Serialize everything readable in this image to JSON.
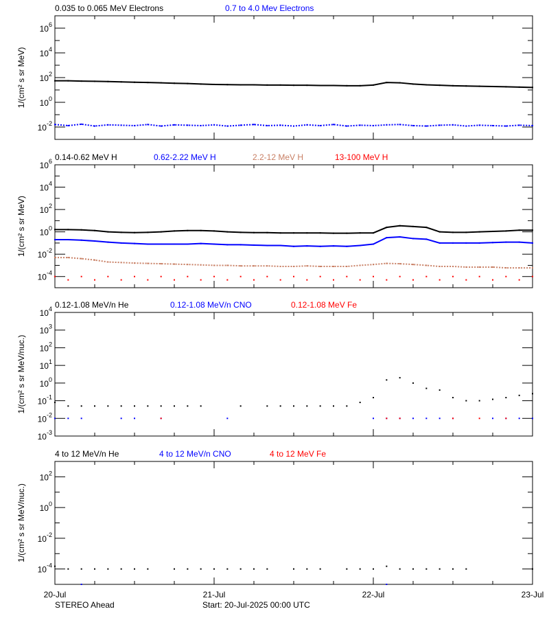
{
  "footer": {
    "spacecraft": "STEREO Ahead",
    "start": "Start: 20-Jul-2025 00:00 UTC"
  },
  "chart_data": {
    "type": "scatter",
    "x_axis": {
      "tick_labels": [
        "20-Jul",
        "21-Jul",
        "22-Jul",
        "23-Jul"
      ],
      "range": [
        "2025-07-20T00:00",
        "2025-07-23T00:00"
      ],
      "minor_tick_hours": 6
    },
    "x": [
      "2025-07-20T00:00",
      "2025-07-20T02:00",
      "2025-07-20T04:00",
      "2025-07-20T06:00",
      "2025-07-20T08:00",
      "2025-07-20T10:00",
      "2025-07-20T12:00",
      "2025-07-20T14:00",
      "2025-07-20T16:00",
      "2025-07-20T18:00",
      "2025-07-20T20:00",
      "2025-07-20T22:00",
      "2025-07-21T00:00",
      "2025-07-21T02:00",
      "2025-07-21T04:00",
      "2025-07-21T06:00",
      "2025-07-21T08:00",
      "2025-07-21T10:00",
      "2025-07-21T12:00",
      "2025-07-21T14:00",
      "2025-07-21T16:00",
      "2025-07-21T18:00",
      "2025-07-21T20:00",
      "2025-07-21T22:00",
      "2025-07-22T00:00",
      "2025-07-22T02:00",
      "2025-07-22T04:00",
      "2025-07-22T06:00",
      "2025-07-22T08:00",
      "2025-07-22T10:00",
      "2025-07-22T12:00",
      "2025-07-22T14:00",
      "2025-07-22T16:00",
      "2025-07-22T18:00",
      "2025-07-22T20:00",
      "2025-07-22T22:00",
      "2025-07-23T00:00"
    ],
    "panels": [
      {
        "ylabel": "1/(cm² s sr MeV)",
        "yscale": "log",
        "ylim": [
          0.001,
          10000000
        ],
        "ytick_exponents": [
          6,
          4,
          2,
          0,
          -2
        ],
        "series": [
          {
            "name": "0.035 to 0.065 MeV Electrons",
            "color": "#000000",
            "values": [
              55,
              55,
              52,
              50,
              48,
              45,
              42,
              40,
              38,
              35,
              33,
              30,
              28,
              27,
              26,
              26,
              25,
              25,
              24,
              24,
              23,
              23,
              22,
              22,
              25,
              40,
              38,
              30,
              26,
              24,
              22,
              21,
              20,
              19,
              18,
              17,
              16
            ]
          },
          {
            "name": "0.7 to 4.0 Mev Electrons",
            "color": "#0000ff",
            "values": [
              0.016,
              0.013,
              0.017,
              0.012,
              0.015,
              0.014,
              0.013,
              0.016,
              0.012,
              0.015,
              0.014,
              0.013,
              0.015,
              0.012,
              0.014,
              0.016,
              0.013,
              0.014,
              0.012,
              0.015,
              0.013,
              0.016,
              0.012,
              0.014,
              0.013,
              0.015,
              0.016,
              0.013,
              0.012,
              0.014,
              0.015,
              0.012,
              0.014,
              0.013,
              0.012,
              0.014,
              0.013
            ]
          }
        ]
      },
      {
        "ylabel": "1/(cm² s sr MeV)",
        "yscale": "log",
        "ylim": [
          1e-05,
          1000000
        ],
        "ytick_exponents": [
          6,
          4,
          2,
          0,
          -2,
          -4
        ],
        "series": [
          {
            "name": "0.14-0.62 MeV H",
            "color": "#000000",
            "values": [
              1.6,
              1.6,
              1.5,
              1.3,
              1.0,
              0.9,
              0.85,
              0.9,
              1.0,
              1.2,
              1.3,
              1.3,
              1.2,
              1.0,
              0.9,
              0.85,
              0.85,
              0.8,
              0.8,
              0.8,
              0.8,
              0.75,
              0.75,
              0.8,
              0.8,
              2.5,
              3.5,
              3.0,
              2.5,
              1.0,
              0.9,
              0.9,
              1.0,
              1.1,
              1.2,
              1.4,
              1.4
            ]
          },
          {
            "name": "0.62-2.22 MeV H",
            "color": "#0000ff",
            "values": [
              0.2,
              0.2,
              0.18,
              0.15,
              0.12,
              0.1,
              0.09,
              0.08,
              0.08,
              0.08,
              0.08,
              0.09,
              0.08,
              0.07,
              0.07,
              0.065,
              0.06,
              0.06,
              0.05,
              0.055,
              0.05,
              0.055,
              0.05,
              0.06,
              0.08,
              0.3,
              0.35,
              0.25,
              0.22,
              0.1,
              0.1,
              0.1,
              0.1,
              0.11,
              0.12,
              0.12,
              0.1
            ]
          },
          {
            "name": "2.2-12 MeV H",
            "color": "#c87f64",
            "values": [
              0.005,
              0.005,
              0.004,
              0.003,
              0.002,
              0.0018,
              0.0016,
              0.0015,
              0.0014,
              0.0013,
              0.0012,
              0.0011,
              0.001,
              0.001,
              0.0009,
              0.0009,
              0.0009,
              0.0008,
              0.0008,
              0.0009,
              0.0008,
              0.0008,
              0.0008,
              0.001,
              0.0012,
              0.0015,
              0.0014,
              0.0012,
              0.001,
              0.0008,
              0.0008,
              0.0007,
              0.0007,
              0.0007,
              0.0006,
              0.0006,
              0.0006
            ]
          },
          {
            "name": "13-100 MeV H",
            "color": "#ff0000",
            "values": [
              0.0001,
              5e-05,
              0.0001,
              5e-05,
              0.0001,
              5e-05,
              0.0001,
              5e-05,
              0.0001,
              5e-05,
              0.0001,
              5e-05,
              0.0001,
              5e-05,
              0.0001,
              5e-05,
              0.0001,
              5e-05,
              0.0001,
              5e-05,
              0.0001,
              5e-05,
              0.0001,
              5e-05,
              0.0001,
              5e-05,
              0.0001,
              5e-05,
              0.0001,
              5e-05,
              0.0001,
              5e-05,
              0.0001,
              5e-05,
              0.0001,
              5e-05,
              0.0001
            ]
          }
        ]
      },
      {
        "ylabel": "1/(cm² s sr MeV/nuc.)",
        "yscale": "log",
        "ylim": [
          0.001,
          10000
        ],
        "ytick_exponents": [
          4,
          3,
          2,
          1,
          0,
          -1,
          -2,
          -3
        ],
        "series": [
          {
            "name": "0.12-1.08 MeV/n He",
            "color": "#000000",
            "values": [
              0.08,
              0.05,
              0.05,
              0.05,
              0.05,
              0.05,
              0.05,
              0.05,
              0.05,
              0.05,
              0.05,
              0.05,
              null,
              null,
              0.05,
              null,
              0.05,
              0.05,
              0.05,
              0.05,
              0.05,
              0.05,
              0.05,
              0.08,
              0.15,
              1.5,
              2.0,
              1.0,
              0.5,
              0.4,
              0.15,
              0.1,
              0.1,
              0.12,
              0.15,
              0.2,
              0.25
            ]
          },
          {
            "name": "0.12-1.08 MeV/n CNO",
            "color": "#0000ff",
            "values": [
              0.01,
              0.01,
              0.01,
              null,
              null,
              0.01,
              0.01,
              null,
              0.01,
              null,
              null,
              null,
              null,
              0.01,
              null,
              null,
              null,
              null,
              null,
              null,
              null,
              null,
              null,
              null,
              0.01,
              0.01,
              0.01,
              0.01,
              0.01,
              0.01,
              0.01,
              null,
              null,
              0.01,
              0.01,
              0.01,
              0.01
            ]
          },
          {
            "name": "0.12-1.08 MeV Fe",
            "color": "#ff0000",
            "values": [
              null,
              null,
              null,
              null,
              null,
              null,
              null,
              null,
              0.01,
              null,
              null,
              null,
              null,
              null,
              null,
              null,
              null,
              null,
              null,
              null,
              null,
              null,
              null,
              null,
              null,
              0.01,
              0.01,
              null,
              null,
              null,
              0.01,
              null,
              0.01,
              null,
              0.01,
              null,
              null
            ]
          }
        ]
      },
      {
        "ylabel": "1/(cm² s sr MeV/nuc.)",
        "yscale": "log",
        "ylim": [
          1e-05,
          1000
        ],
        "ytick_exponents": [
          2,
          0,
          -2,
          -4
        ],
        "series": [
          {
            "name": "4 to 12 MeV/n He",
            "color": "#000000",
            "values": [
              0.00015,
              0.0001,
              0.0001,
              0.0001,
              0.0001,
              0.0001,
              0.0001,
              0.0001,
              null,
              0.0001,
              0.0001,
              0.0001,
              0.0001,
              0.0001,
              0.0001,
              0.0001,
              0.0001,
              null,
              0.0001,
              0.0001,
              0.0001,
              null,
              0.0001,
              0.0001,
              0.0001,
              0.00015,
              0.0001,
              0.0001,
              0.0001,
              0.0001,
              0.0001,
              0.0001,
              null,
              null,
              null,
              null,
              0.0001
            ]
          },
          {
            "name": "4 to 12 MeV/n CNO",
            "color": "#0000ff",
            "values": [
              null,
              null,
              1e-05,
              null,
              null,
              null,
              null,
              null,
              null,
              null,
              null,
              null,
              null,
              null,
              null,
              null,
              null,
              null,
              null,
              null,
              null,
              null,
              null,
              null,
              null,
              1e-05,
              null,
              null,
              null,
              null,
              null,
              null,
              null,
              null,
              null,
              null,
              null
            ]
          },
          {
            "name": "4 to 12 MeV Fe",
            "color": "#ff0000",
            "values": []
          }
        ]
      }
    ]
  }
}
